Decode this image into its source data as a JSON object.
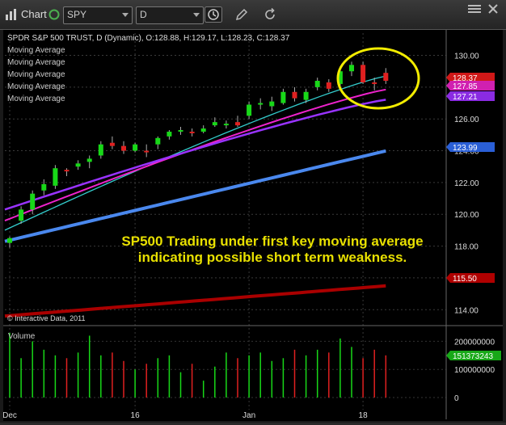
{
  "toolbar": {
    "title": "Chart",
    "symbol": "SPY",
    "interval": "D",
    "icons": [
      "chart-icon",
      "clock-icon",
      "pencil-icon",
      "refresh-icon",
      "menu-icon",
      "close-icon"
    ]
  },
  "chart_data": {
    "type": "candlestick",
    "header": "SPDR S&P 500 TRUST, D (Dynamic), O:128.88, H:129.17, L:128.23, C:128.37",
    "indicator_labels": [
      "Moving Average",
      "Moving Average",
      "Moving Average",
      "Moving Average",
      "Moving Average"
    ],
    "ylim": [
      113.2,
      131.4
    ],
    "y_ticks": [
      114.0,
      116.0,
      118.0,
      120.0,
      122.0,
      124.0,
      126.0,
      128.0,
      130.0
    ],
    "x_ticks": [
      {
        "label": "Dec",
        "index": 0
      },
      {
        "label": "16",
        "index": 11
      },
      {
        "label": "Jan",
        "index": 21
      },
      {
        "label": "18",
        "index": 31
      }
    ],
    "candles": [
      [
        118.2,
        118.6,
        117.9,
        118.5
      ],
      [
        119.6,
        120.5,
        119.4,
        120.3
      ],
      [
        120.3,
        121.5,
        120.0,
        121.3
      ],
      [
        121.5,
        122.2,
        121.2,
        121.9
      ],
      [
        121.8,
        123.1,
        121.6,
        122.9
      ],
      [
        122.8,
        122.9,
        122.4,
        122.7
      ],
      [
        123.0,
        123.4,
        122.8,
        123.2
      ],
      [
        123.3,
        123.7,
        122.9,
        123.5
      ],
      [
        123.7,
        124.6,
        123.5,
        124.4
      ],
      [
        124.5,
        124.9,
        124.1,
        124.3
      ],
      [
        124.3,
        124.6,
        123.8,
        124.0
      ],
      [
        124.0,
        124.5,
        123.9,
        124.4
      ],
      [
        124.0,
        124.4,
        123.6,
        123.9
      ],
      [
        124.4,
        124.9,
        124.1,
        124.8
      ],
      [
        124.9,
        125.3,
        124.7,
        125.2
      ],
      [
        125.2,
        125.5,
        125.0,
        125.3
      ],
      [
        125.2,
        125.4,
        124.9,
        125.1
      ],
      [
        125.2,
        125.6,
        125.1,
        125.4
      ],
      [
        125.6,
        126.1,
        125.5,
        125.8
      ],
      [
        125.6,
        125.9,
        125.4,
        125.7
      ],
      [
        125.8,
        126.2,
        125.5,
        125.6
      ],
      [
        126.2,
        127.1,
        126.0,
        126.9
      ],
      [
        126.9,
        127.3,
        126.6,
        127.0
      ],
      [
        126.8,
        127.4,
        126.5,
        127.1
      ],
      [
        127.0,
        127.9,
        126.9,
        127.7
      ],
      [
        127.7,
        128.0,
        127.1,
        127.3
      ],
      [
        127.2,
        127.9,
        127.0,
        127.7
      ],
      [
        128.0,
        128.6,
        127.8,
        128.4
      ],
      [
        128.3,
        128.5,
        127.7,
        127.9
      ],
      [
        128.2,
        129.3,
        128.0,
        129.0
      ],
      [
        129.0,
        129.6,
        128.7,
        129.4
      ],
      [
        129.4,
        129.6,
        128.2,
        128.3
      ],
      [
        128.3,
        128.6,
        127.8,
        128.2
      ],
      [
        128.9,
        129.2,
        128.2,
        128.4
      ]
    ],
    "moving_averages": [
      {
        "color": "#33cccc",
        "start": 119.0,
        "end": 128.7
      },
      {
        "color": "#ee22cc",
        "start": 119.6,
        "end": 127.85
      },
      {
        "color": "#9933ff",
        "start": 120.3,
        "end": 127.21
      },
      {
        "color": "#4a88ee",
        "start": 118.3,
        "end": 123.99
      },
      {
        "color": "#aa0000",
        "start": 113.6,
        "end": 115.5
      }
    ],
    "last_value_labels": [
      {
        "value": "128.37",
        "color": "#d01818"
      },
      {
        "value": "127.85",
        "color": "#d020b0"
      },
      {
        "value": "127.21",
        "color": "#8a2be2"
      },
      {
        "value": "123.99",
        "color": "#2a5fd6"
      },
      {
        "value": "115.50",
        "color": "#b00000"
      }
    ],
    "annotation": [
      "SP500 Trading under first key moving average",
      "indicating possible short term weakness."
    ],
    "copyright": "© Interactive Data, 2011",
    "volume": {
      "title": "Volume",
      "ylim": [
        0,
        250000000
      ],
      "y_ticks": [
        "200000000",
        "100000000",
        "0"
      ],
      "last_label": "151373243",
      "values": [
        230,
        140,
        200,
        170,
        150,
        140,
        160,
        220,
        150,
        160,
        130,
        100,
        120,
        140,
        150,
        90,
        120,
        60,
        110,
        160,
        140,
        150,
        160,
        130,
        140,
        170,
        150,
        170,
        160,
        210,
        180,
        140,
        170,
        150
      ]
    }
  }
}
